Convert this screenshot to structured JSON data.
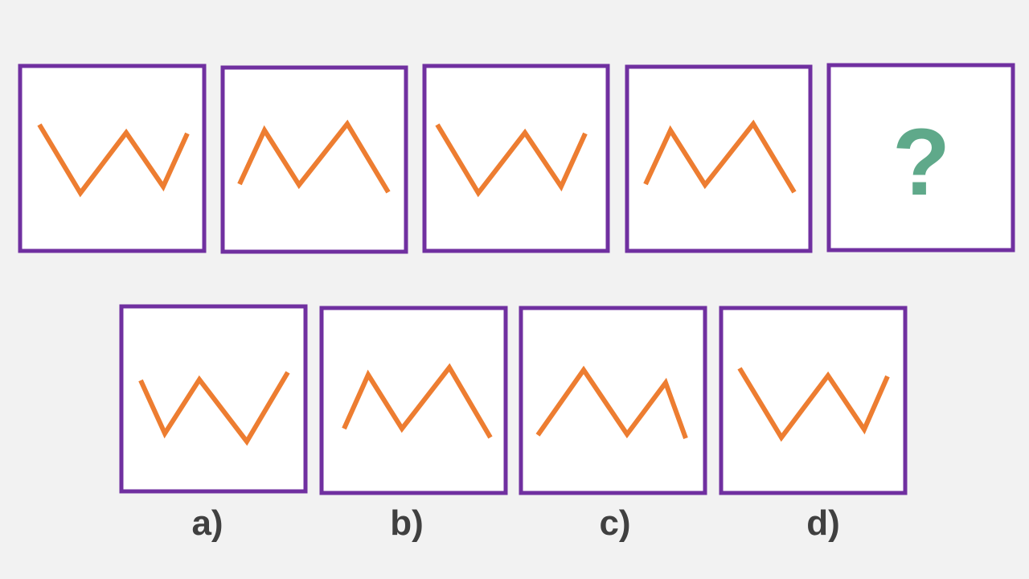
{
  "sequence": {
    "missing": "?"
  },
  "options": [
    {
      "label": "a)"
    },
    {
      "label": "b)"
    },
    {
      "label": "c)"
    },
    {
      "label": "d)"
    }
  ]
}
